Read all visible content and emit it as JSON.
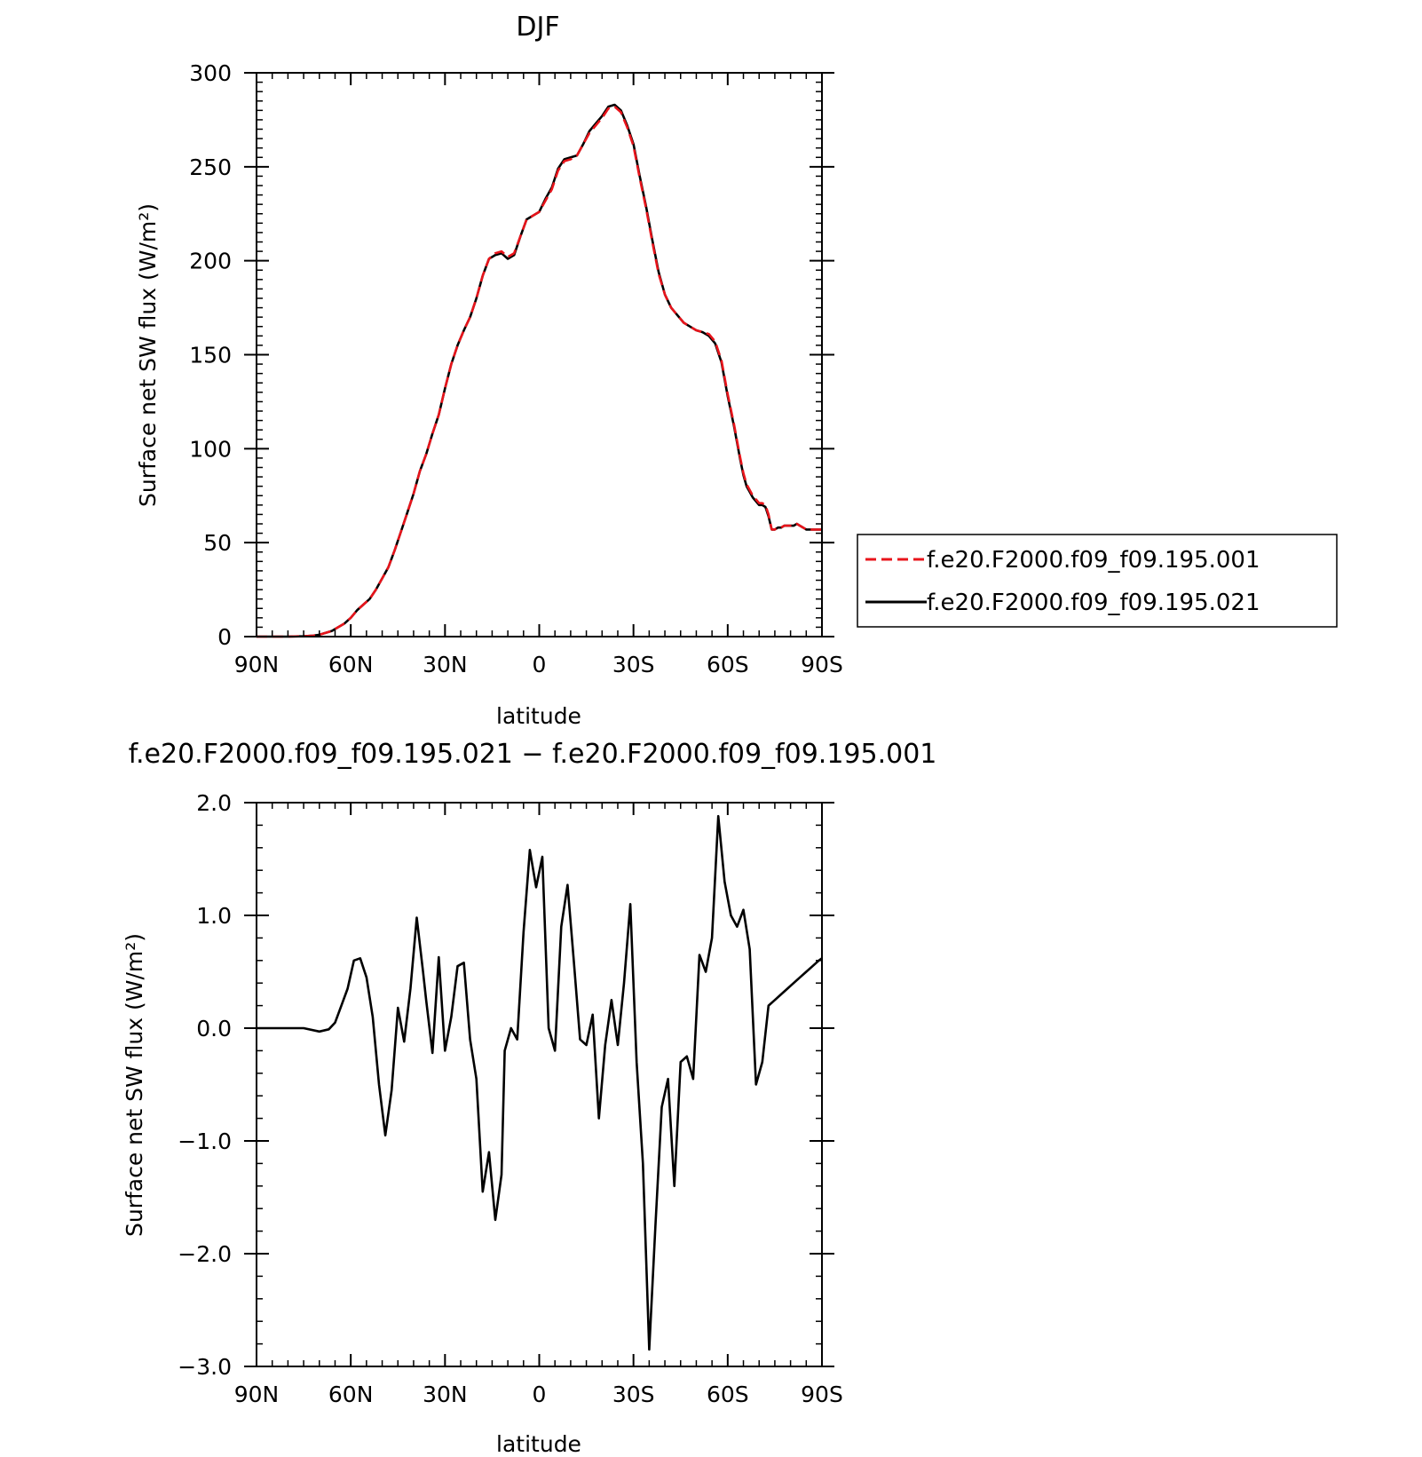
{
  "chart_data": [
    {
      "type": "line",
      "title": "DJF",
      "xlabel": "latitude",
      "ylabel": "Surface net SW flux (W/m²)",
      "xlim": [
        90,
        -90
      ],
      "ylim": [
        0,
        300
      ],
      "xticks": [
        90,
        60,
        30,
        0,
        -30,
        -60,
        -90
      ],
      "xtick_labels": [
        "90N",
        "60N",
        "30N",
        "0",
        "30S",
        "60S",
        "90S"
      ],
      "yticks": [
        0,
        50,
        100,
        150,
        200,
        250,
        300
      ],
      "ytick_labels": [
        "0",
        "50",
        "100",
        "150",
        "200",
        "250",
        "300"
      ],
      "legend_placement": "right",
      "x": [
        90,
        85,
        80,
        75,
        72,
        70,
        68,
        66,
        64,
        62,
        60,
        58,
        56,
        54,
        52,
        50,
        48,
        46,
        44,
        42,
        40,
        38,
        36,
        34,
        32,
        30,
        28,
        26,
        24,
        22,
        20,
        18,
        16,
        14,
        12,
        10,
        8,
        6,
        4,
        2,
        0,
        -2,
        -4,
        -6,
        -8,
        -10,
        -12,
        -14,
        -16,
        -18,
        -20,
        -22,
        -24,
        -26,
        -28,
        -30,
        -32,
        -34,
        -36,
        -38,
        -40,
        -42,
        -44,
        -46,
        -48,
        -50,
        -52,
        -54,
        -56,
        -58,
        -60,
        -62,
        -64,
        -65,
        -66,
        -67,
        -68,
        -69,
        -70,
        -71,
        -72,
        -73,
        -74,
        -75,
        -76,
        -77,
        -78,
        -79,
        -80,
        -81,
        -82,
        -83,
        -84,
        -85,
        -86,
        -87,
        -88,
        -89,
        -90
      ],
      "series": [
        {
          "name": "f.e20.F2000.f09_f09.195.001",
          "color": "#e8141b",
          "dash": true,
          "values": [
            0,
            0,
            0,
            0.2,
            0.5,
            1,
            2,
            3,
            5,
            7,
            10,
            14,
            17,
            20,
            25,
            31,
            37,
            46,
            56,
            66,
            76,
            88,
            97,
            108,
            118,
            132,
            145,
            155,
            163,
            170,
            180,
            192,
            201,
            204,
            205,
            202,
            204,
            213,
            222,
            224,
            226,
            232,
            238,
            248,
            253,
            254,
            256,
            262,
            268,
            272,
            276,
            281,
            282,
            279,
            271,
            261,
            244,
            228,
            210,
            193,
            182,
            175,
            171,
            167,
            165,
            163,
            162,
            161,
            157,
            147,
            129,
            113,
            95,
            87,
            81,
            78,
            75,
            73,
            71,
            71,
            70,
            65,
            57,
            57,
            58,
            58,
            59,
            59,
            59,
            59,
            60,
            59,
            58,
            57,
            57,
            57,
            57,
            57,
            57
          ]
        },
        {
          "name": "f.e20.F2000.f09_f09.195.021",
          "color": "#000000",
          "dash": false,
          "values": [
            0,
            0,
            0,
            0.2,
            0.5,
            1,
            2,
            3,
            5,
            7,
            10,
            14,
            17,
            20,
            25,
            31,
            37,
            46,
            56,
            66,
            76,
            88,
            97,
            108,
            118,
            132,
            145,
            155,
            163,
            170,
            180,
            192,
            201,
            203,
            204,
            201,
            203,
            213,
            222,
            224,
            226,
            233,
            239,
            249,
            254,
            255,
            256,
            262,
            269,
            273,
            277,
            282,
            283,
            280,
            272,
            262,
            245,
            229,
            211,
            194,
            182,
            175,
            171,
            167,
            165,
            163,
            162,
            160,
            156,
            146,
            128,
            112,
            94,
            86,
            80,
            77,
            74,
            72,
            70,
            70,
            69,
            64,
            57,
            57,
            58,
            58,
            59,
            59,
            59,
            59,
            60,
            59,
            58,
            57,
            57,
            57,
            57,
            57,
            57
          ]
        }
      ]
    },
    {
      "type": "line",
      "title": "f.e20.F2000.f09_f09.195.021 − f.e20.F2000.f09_f09.195.001",
      "xlabel": "latitude",
      "ylabel": "Surface net SW flux (W/m²)",
      "xlim": [
        90,
        -90
      ],
      "ylim": [
        -3,
        2
      ],
      "xticks": [
        90,
        60,
        30,
        0,
        -30,
        -60,
        -90
      ],
      "xtick_labels": [
        "90N",
        "60N",
        "30N",
        "0",
        "30S",
        "60S",
        "90S"
      ],
      "yticks": [
        -3,
        -2,
        -1,
        0,
        1,
        2
      ],
      "ytick_labels": [
        "−3.0",
        "−2.0",
        "−1.0",
        "0.0",
        "1.0",
        "2.0"
      ],
      "x": [
        90,
        75,
        70,
        67,
        65,
        63,
        61,
        59,
        57,
        55,
        53,
        51,
        49,
        47,
        45,
        43,
        41,
        39,
        37,
        36,
        34,
        32,
        30,
        28,
        26,
        24,
        22,
        20,
        18,
        16,
        14,
        12,
        11,
        9,
        7,
        5,
        3,
        1,
        -1,
        -3,
        -5,
        -7,
        -9,
        -11,
        -13,
        -15,
        -17,
        -19,
        -21,
        -23,
        -25,
        -27,
        -29,
        -31,
        -33,
        -35,
        -37,
        -39,
        -41,
        -43,
        -45,
        -47,
        -49,
        -51,
        -53,
        -55,
        -57,
        -59,
        -61,
        -63,
        -65,
        -67,
        -69,
        -71,
        -73,
        -75,
        -77,
        -79,
        -81,
        -83,
        -85,
        -87,
        -89,
        -90
      ],
      "series": [
        {
          "name": "",
          "color": "#000000",
          "dash": false,
          "values": [
            0,
            0,
            -0.03,
            -0.01,
            0.05,
            0.2,
            0.35,
            0.6,
            0.62,
            0.45,
            0.1,
            -0.5,
            -0.95,
            -0.55,
            0.18,
            -0.12,
            0.35,
            0.98,
            0.5,
            0.25,
            -0.22,
            0.63,
            -0.2,
            0.1,
            0.55,
            0.58,
            -0.1,
            -0.45,
            -1.45,
            -1.1,
            -1.7,
            -1.3,
            -0.2,
            0.0,
            -0.1,
            0.85,
            1.58,
            1.25,
            1.52,
            0.0,
            -0.2,
            0.9,
            1.27,
            0.6,
            -0.1,
            -0.15,
            0.12,
            -0.8,
            -0.15,
            0.25,
            -0.15,
            0.4,
            1.1,
            -0.3,
            -1.2,
            -2.85,
            -1.75,
            -0.7,
            -0.45,
            -1.4,
            -0.3,
            -0.25,
            -0.45,
            0.65,
            0.5,
            0.8,
            1.88,
            1.3,
            1.0,
            0.9,
            1.05,
            0.7,
            -0.5,
            -0.3,
            0.2,
            0.25,
            0.3,
            0.35,
            0.4,
            0.45,
            0.5,
            0.55,
            0.6,
            0.62
          ]
        }
      ]
    }
  ]
}
